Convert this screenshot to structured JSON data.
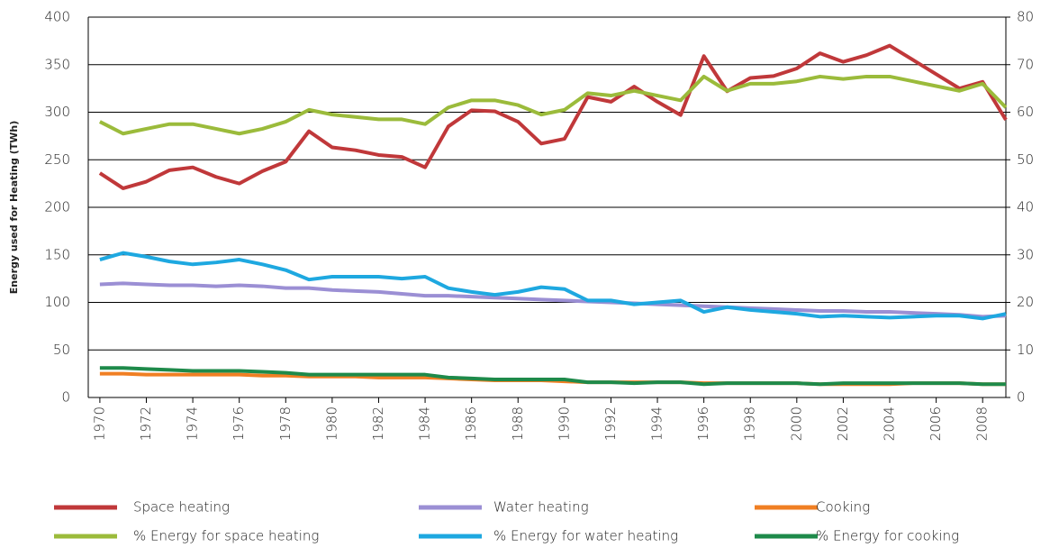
{
  "chart_data": {
    "type": "line",
    "y_label": "Energy used for Heating (TWh)",
    "x": [
      1970,
      1971,
      1972,
      1973,
      1974,
      1975,
      1976,
      1977,
      1978,
      1979,
      1980,
      1981,
      1982,
      1983,
      1984,
      1985,
      1986,
      1987,
      1988,
      1989,
      1990,
      1991,
      1992,
      1993,
      1994,
      1995,
      1996,
      1997,
      1998,
      1999,
      2000,
      2001,
      2002,
      2003,
      2004,
      2005,
      2006,
      2007,
      2008,
      2009
    ],
    "xlim": [
      1969.5,
      2009
    ],
    "xticks": [
      1970,
      1972,
      1974,
      1976,
      1978,
      1980,
      1982,
      1984,
      1986,
      1988,
      1990,
      1992,
      1994,
      1996,
      1998,
      2000,
      2002,
      2004,
      2006,
      2008
    ],
    "ylim": [
      0,
      400
    ],
    "yticks": [
      0,
      50,
      100,
      150,
      200,
      250,
      300,
      350,
      400
    ],
    "y2lim": [
      0,
      80
    ],
    "y2ticks": [
      0,
      10,
      20,
      30,
      40,
      50,
      60,
      70,
      80
    ],
    "grid": true,
    "series": [
      {
        "name": "Space heating",
        "color": "#c0383a",
        "values": [
          236,
          220,
          227,
          239,
          242,
          232,
          225,
          238,
          248,
          280,
          263,
          260,
          255,
          253,
          242,
          285,
          302,
          301,
          290,
          267,
          272,
          316,
          311,
          327,
          311,
          297,
          359,
          322,
          336,
          338,
          346,
          362,
          353,
          360,
          370,
          355,
          340,
          325,
          332,
          292
        ]
      },
      {
        "name": "Water heating",
        "color": "#9b8fd4",
        "values": [
          119,
          120,
          119,
          118,
          118,
          117,
          118,
          117,
          115,
          115,
          113,
          112,
          111,
          109,
          107,
          107,
          106,
          105,
          104,
          103,
          102,
          101,
          100,
          99,
          98,
          97,
          96,
          95,
          94,
          93,
          92,
          91,
          91,
          90,
          90,
          89,
          88,
          87,
          85,
          86
        ]
      },
      {
        "name": "Cooking",
        "color": "#f07f23",
        "values": [
          25,
          25,
          24,
          24,
          24,
          24,
          24,
          23,
          23,
          22,
          22,
          22,
          21,
          21,
          21,
          20,
          19,
          18,
          18,
          18,
          17,
          16,
          16,
          16,
          16,
          16,
          15,
          15,
          15,
          15,
          15,
          14,
          14,
          14,
          14,
          15,
          15,
          15,
          14,
          14
        ]
      },
      {
        "name": "% Energy for space heating",
        "color": "#9bbb3b",
        "axis": "y2",
        "values": [
          58,
          55.5,
          56.5,
          57.5,
          57.5,
          56.5,
          55.5,
          56.5,
          58,
          60.5,
          59.5,
          59,
          58.5,
          58.5,
          57.5,
          61,
          62.5,
          62.5,
          61.5,
          59.5,
          60.5,
          64,
          63.5,
          64.5,
          63.5,
          62.5,
          67.5,
          64.5,
          66,
          66,
          66.5,
          67.5,
          67,
          67.5,
          67.5,
          66.5,
          65.5,
          64.5,
          66,
          61
        ]
      },
      {
        "name": "% Energy for water heating",
        "color": "#1ea8e0",
        "axis": "y2",
        "values": [
          29,
          30.4,
          29.6,
          28.6,
          28,
          28.4,
          29,
          28,
          26.8,
          24.8,
          25.4,
          25.4,
          25.4,
          25,
          25.4,
          23,
          22.2,
          21.6,
          22.2,
          23.2,
          22.8,
          20.4,
          20.4,
          19.6,
          20,
          20.4,
          18,
          19,
          18.4,
          18,
          17.6,
          17,
          17.2,
          17,
          16.8,
          17,
          17.2,
          17.2,
          16.6,
          17.6
        ]
      },
      {
        "name": "% Energy for cooking",
        "color": "#1e8a4a",
        "axis": "y2",
        "values": [
          6.2,
          6.2,
          6,
          5.8,
          5.6,
          5.6,
          5.6,
          5.4,
          5.2,
          4.8,
          4.8,
          4.8,
          4.8,
          4.8,
          4.8,
          4.2,
          4,
          3.8,
          3.8,
          3.8,
          3.8,
          3.2,
          3.2,
          3,
          3.2,
          3.2,
          2.8,
          3,
          3,
          3,
          3,
          2.8,
          3,
          3,
          3,
          3,
          3,
          3,
          2.8,
          2.8
        ]
      }
    ]
  }
}
